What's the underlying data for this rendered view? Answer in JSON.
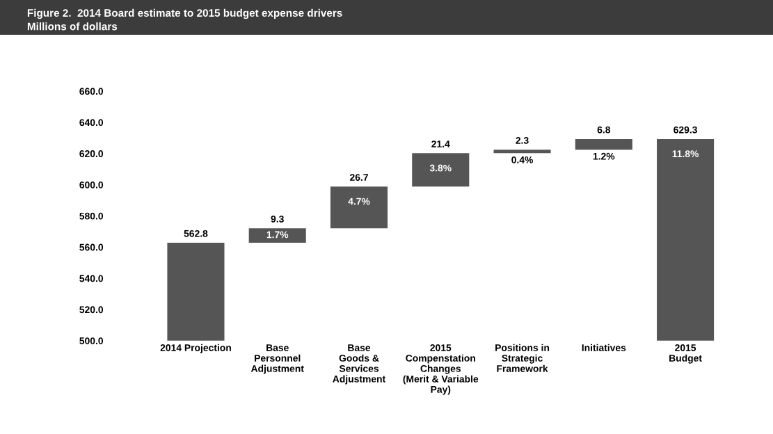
{
  "chart_data": {
    "type": "bar",
    "title": "Figure 2.  2014 Board estimate to 2015 budget expense drivers",
    "subtitle": "Millions of dollars",
    "categories": [
      "2014 Projection",
      "Base\nPersonnel\nAdjustment",
      "Base\nGoods &\nServices\nAdjustment",
      "2015\nCompenstation\nChanges\n(Merit & Variable\nPay)",
      "Positions in\nStrategic\nFramework",
      "Initiatives",
      "2015\nBudget"
    ],
    "values": [
      562.8,
      9.3,
      26.7,
      21.4,
      2.3,
      6.8,
      629.3
    ],
    "base": [
      0,
      562.8,
      572.1,
      598.8,
      620.2,
      622.5,
      0
    ],
    "color": "#555555",
    "data_labels": true,
    "ylim": [
      500,
      660
    ],
    "yticks": [
      {
        "value": 500,
        "label": "500.0"
      },
      {
        "value": 520,
        "label": "520.0"
      },
      {
        "value": 540,
        "label": "540.0"
      },
      {
        "value": 560,
        "label": "560.0"
      },
      {
        "value": 580,
        "label": "580.0"
      },
      {
        "value": 600,
        "label": "600.0"
      },
      {
        "value": 620,
        "label": "620.0"
      },
      {
        "value": 640,
        "label": "640.0"
      },
      {
        "value": 660,
        "label": "660.0"
      }
    ],
    "grid": false,
    "annotations": [
      "1.7%",
      "4.7%",
      "3.8%",
      "0.4%",
      "1.2%",
      "11.8%"
    ]
  }
}
